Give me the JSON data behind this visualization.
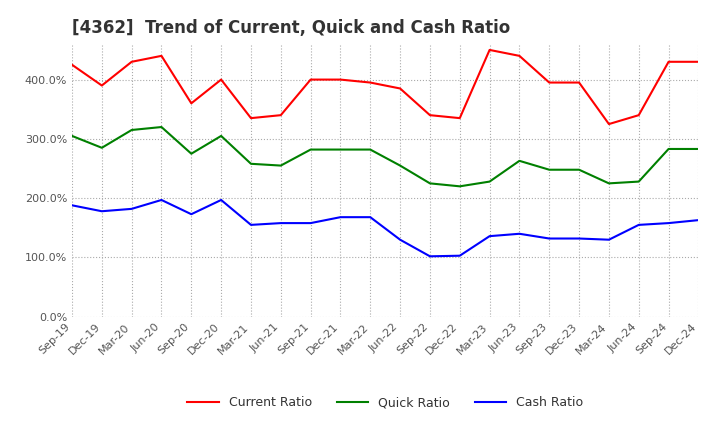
{
  "title": "[4362]  Trend of Current, Quick and Cash Ratio",
  "x_labels": [
    "Sep-19",
    "Dec-19",
    "Mar-20",
    "Jun-20",
    "Sep-20",
    "Dec-20",
    "Mar-21",
    "Jun-21",
    "Sep-21",
    "Dec-21",
    "Mar-22",
    "Jun-22",
    "Sep-22",
    "Dec-22",
    "Mar-23",
    "Jun-23",
    "Sep-23",
    "Dec-23",
    "Mar-24",
    "Jun-24",
    "Sep-24",
    "Dec-24"
  ],
  "current_ratio": [
    425,
    390,
    430,
    440,
    360,
    400,
    335,
    340,
    400,
    400,
    395,
    385,
    340,
    335,
    450,
    440,
    395,
    395,
    325,
    340,
    430,
    430
  ],
  "quick_ratio": [
    305,
    285,
    315,
    320,
    275,
    305,
    258,
    255,
    282,
    282,
    282,
    255,
    225,
    220,
    228,
    263,
    248,
    248,
    225,
    228,
    283,
    283
  ],
  "cash_ratio": [
    188,
    178,
    182,
    197,
    173,
    197,
    155,
    158,
    158,
    168,
    168,
    130,
    102,
    103,
    136,
    140,
    132,
    132,
    130,
    155,
    158,
    163
  ],
  "ylim": [
    0,
    460
  ],
  "yticks": [
    0,
    100,
    200,
    300,
    400
  ],
  "current_color": "#FF0000",
  "quick_color": "#008000",
  "cash_color": "#0000FF",
  "background_color": "#FFFFFF",
  "grid_color": "#AAAAAA",
  "title_fontsize": 12,
  "tick_color": "#555555",
  "tick_fontsize": 8
}
